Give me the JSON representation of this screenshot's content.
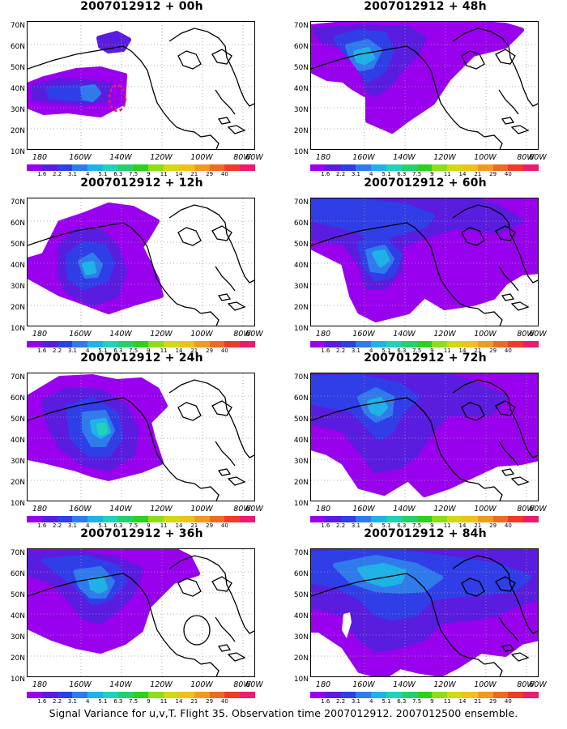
{
  "caption": "Signal Variance for u,v,T. Flight 35. Observation time 2007012912. 2007012500 ensemble.",
  "colors": {
    "scale": [
      "#9900ee",
      "#5a1de0",
      "#2f3ee6",
      "#2f7bec",
      "#1fb2e6",
      "#20d2b8",
      "#25d06b",
      "#2ad21d",
      "#8fdc18",
      "#d2d815",
      "#eec21a",
      "#ee9b1f",
      "#ed6a22",
      "#ee3b2a",
      "#ec1b6e"
    ],
    "land_line": "#000000",
    "marker": "#e81e64",
    "grid": "#9a9a9a"
  },
  "colorbar_labels": [
    "1.6",
    "2.2",
    "3.1",
    "4",
    "5.1",
    "6.3",
    "7.5",
    "9",
    "11",
    "14",
    "21",
    "29",
    "40"
  ],
  "y_ticks": [
    "70N",
    "60N",
    "50N",
    "40N",
    "30N",
    "20N",
    "10N"
  ],
  "x_ticks": [
    "180",
    "160W",
    "140W",
    "120W",
    "100W",
    "80W",
    "60W"
  ],
  "panels": [
    {
      "title": "2007012912 + 00h"
    },
    {
      "title": "2007012912 + 48h"
    },
    {
      "title": "2007012912 + 12h"
    },
    {
      "title": "2007012912 + 60h"
    },
    {
      "title": "2007012912 + 24h"
    },
    {
      "title": "2007012912 + 72h"
    },
    {
      "title": "2007012912 + 36h"
    },
    {
      "title": "2007012912 + 84h"
    }
  ],
  "chart_data": {
    "type": "heatmap",
    "variable": "Signal Variance for u,v,T",
    "valid_time": "2007012912",
    "lead_times_h": [
      0,
      12,
      24,
      36,
      48,
      60,
      72,
      84
    ],
    "color_levels": [
      1.6,
      2.2,
      3.1,
      4,
      5.1,
      6.3,
      7.5,
      9,
      11,
      14,
      21,
      29,
      40
    ],
    "lon_range": [
      "180",
      "60W"
    ],
    "lat_range": [
      "10N",
      "70N"
    ],
    "grid": true,
    "legend": "bottom colorbar"
  }
}
